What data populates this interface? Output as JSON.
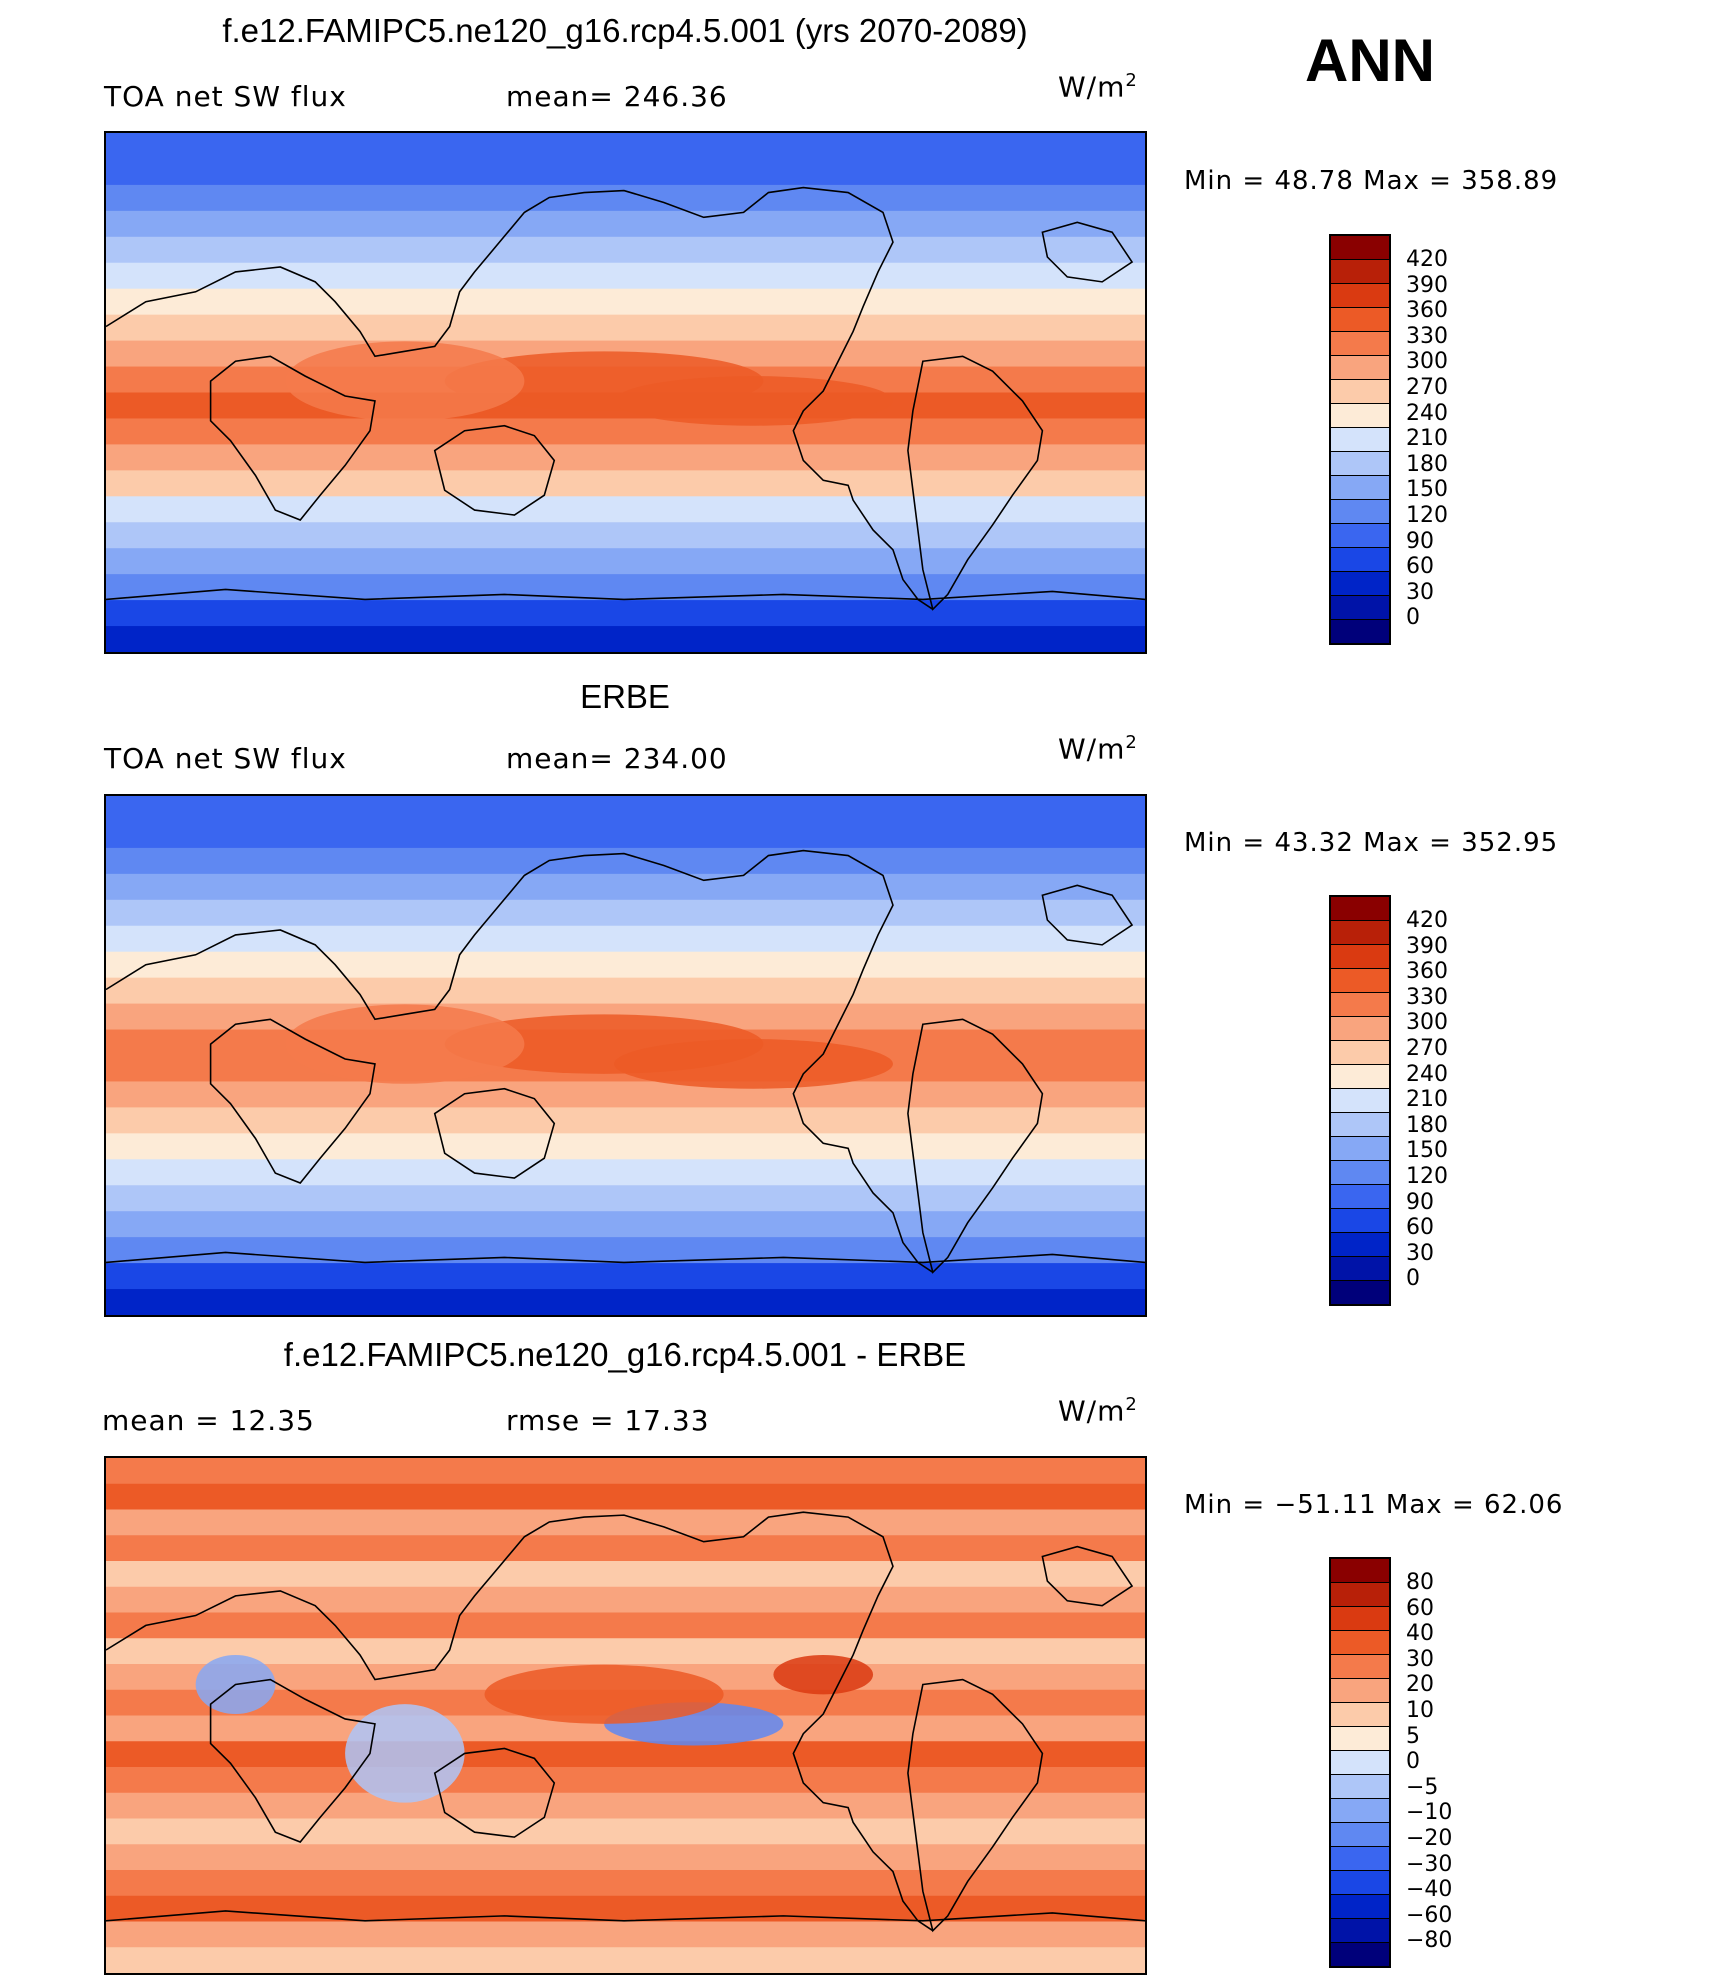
{
  "season": "ANN",
  "units_base": "W/m",
  "units_sup": "2",
  "colors": {
    "abs_scale": [
      "#00007a",
      "#0013a8",
      "#0024c8",
      "#1a47e6",
      "#3a66f0",
      "#5f88f2",
      "#86a8f5",
      "#aec6f8",
      "#d4e3fb",
      "#fdebd7",
      "#fccbaa",
      "#f9a47e",
      "#f47a4b",
      "#ec5a26",
      "#da3a11",
      "#b82008",
      "#8a0000"
    ],
    "diff_scale": [
      "#00007a",
      "#0013a8",
      "#0024c8",
      "#1a47e6",
      "#3a66f0",
      "#5f88f2",
      "#86a8f5",
      "#aec6f8",
      "#d4e3fb",
      "#fdebd7",
      "#fccbaa",
      "#f9a47e",
      "#f47a4b",
      "#ec5a26",
      "#da3a11",
      "#b82008",
      "#8a0000"
    ]
  },
  "panels": [
    {
      "title": "f.e12.FAMIPC5.ne120_g16.rcp4.5.001 (yrs 2070-2089)",
      "left_label": "TOA net SW flux",
      "center_label": "mean= 246.36",
      "minmax": "Min =   48.78  Max  =  358.89",
      "levels": [
        "420",
        "390",
        "360",
        "330",
        "300",
        "270",
        "240",
        "210",
        "180",
        "150",
        "120",
        "90",
        "60",
        "30",
        "0"
      ],
      "field": "model"
    },
    {
      "title": "ERBE",
      "left_label": "TOA net SW flux",
      "center_label": "mean= 234.00",
      "minmax": "Min =   43.32  Max  =  352.95",
      "levels": [
        "420",
        "390",
        "360",
        "330",
        "300",
        "270",
        "240",
        "210",
        "180",
        "150",
        "120",
        "90",
        "60",
        "30",
        "0"
      ],
      "field": "obs"
    },
    {
      "title": "f.e12.FAMIPC5.ne120_g16.rcp4.5.001 - ERBE",
      "left_label": "mean =    12.35",
      "center_label": "rmse =    17.33",
      "minmax": "Min  = −51.11  Max  =   62.06",
      "levels": [
        "80",
        "60",
        "40",
        "30",
        "20",
        "10",
        "5",
        "0",
        "−5",
        "−10",
        "−20",
        "−30",
        "−40",
        "−60",
        "−80"
      ],
      "field": "diff"
    }
  ]
}
